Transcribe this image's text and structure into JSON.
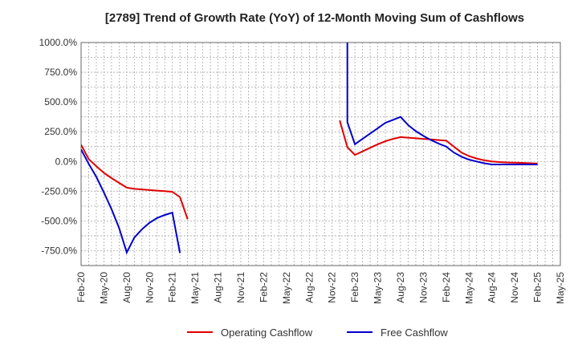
{
  "chart_data": {
    "type": "line",
    "title": "[2789]  Trend of Growth Rate (YoY) of 12-Month Moving Sum of Cashflows",
    "xlabel": "",
    "ylabel": "",
    "ylim": [
      -875,
      1000
    ],
    "y_ticks": [
      1000,
      750,
      500,
      250,
      0,
      -250,
      -500,
      -750
    ],
    "y_tick_labels": [
      "1000.0%",
      "750.0%",
      "500.0%",
      "250.0%",
      "0.0%",
      "-250.0%",
      "-500.0%",
      "-750.0%"
    ],
    "x_tick_labels": [
      "Feb-20",
      "May-20",
      "Aug-20",
      "Nov-20",
      "Feb-21",
      "May-21",
      "Aug-21",
      "Nov-21",
      "Feb-22",
      "May-22",
      "Aug-22",
      "Nov-22",
      "Feb-23",
      "May-23",
      "Aug-23",
      "Nov-23",
      "Feb-24",
      "May-24",
      "Aug-24",
      "Nov-24",
      "Feb-25",
      "May-25"
    ],
    "x_months": [
      "2020-02",
      "2020-03",
      "2020-04",
      "2020-05",
      "2020-06",
      "2020-07",
      "2020-08",
      "2020-09",
      "2020-10",
      "2020-11",
      "2020-12",
      "2021-01",
      "2021-02",
      "2021-03",
      "2021-04",
      "2021-05",
      "2021-06",
      "2021-07",
      "2021-08",
      "2021-09",
      "2021-10",
      "2021-11",
      "2021-12",
      "2022-01",
      "2022-02",
      "2022-03",
      "2022-04",
      "2022-05",
      "2022-06",
      "2022-07",
      "2022-08",
      "2022-09",
      "2022-10",
      "2022-11",
      "2022-12",
      "2023-01",
      "2023-02",
      "2023-03",
      "2023-04",
      "2023-05",
      "2023-06",
      "2023-07",
      "2023-08",
      "2023-09",
      "2023-10",
      "2023-11",
      "2023-12",
      "2024-01",
      "2024-02",
      "2024-03",
      "2024-04",
      "2024-05",
      "2024-06",
      "2024-07",
      "2024-08",
      "2024-09",
      "2024-10",
      "2024-11",
      "2024-12",
      "2025-01",
      "2025-02",
      "2025-03",
      "2025-04",
      "2025-05"
    ],
    "grid": true,
    "legend_position": "bottom-center",
    "series": [
      {
        "name": "Operating Cashflow",
        "color": "#e00000",
        "points": [
          [
            "2020-02",
            140
          ],
          [
            "2020-03",
            20
          ],
          [
            "2020-04",
            -40
          ],
          [
            "2020-05",
            -95
          ],
          [
            "2020-06",
            -140
          ],
          [
            "2020-07",
            -180
          ],
          [
            "2020-08",
            -220
          ],
          [
            "2020-09",
            -230
          ],
          [
            "2020-10",
            -235
          ],
          [
            "2020-11",
            -240
          ],
          [
            "2020-12",
            -245
          ],
          [
            "2021-01",
            -250
          ],
          [
            "2021-02",
            -255
          ],
          [
            "2021-03",
            -300
          ],
          [
            "2021-04",
            -485
          ],
          [
            "2022-12",
            345
          ],
          [
            "2023-01",
            120
          ],
          [
            "2023-02",
            55
          ],
          [
            "2023-03",
            85
          ],
          [
            "2023-04",
            115
          ],
          [
            "2023-05",
            145
          ],
          [
            "2023-06",
            170
          ],
          [
            "2023-07",
            190
          ],
          [
            "2023-08",
            205
          ],
          [
            "2023-09",
            200
          ],
          [
            "2023-10",
            195
          ],
          [
            "2023-11",
            190
          ],
          [
            "2023-12",
            185
          ],
          [
            "2024-01",
            180
          ],
          [
            "2024-02",
            175
          ],
          [
            "2024-03",
            125
          ],
          [
            "2024-04",
            75
          ],
          [
            "2024-05",
            45
          ],
          [
            "2024-06",
            25
          ],
          [
            "2024-07",
            10
          ],
          [
            "2024-08",
            0
          ],
          [
            "2024-09",
            -5
          ],
          [
            "2024-10",
            -8
          ],
          [
            "2024-11",
            -10
          ],
          [
            "2024-12",
            -12
          ],
          [
            "2025-01",
            -15
          ],
          [
            "2025-02",
            -18
          ]
        ]
      },
      {
        "name": "Free Cashflow",
        "color": "#0000cc",
        "points": [
          [
            "2020-02",
            100
          ],
          [
            "2020-03",
            -20
          ],
          [
            "2020-04",
            -130
          ],
          [
            "2020-05",
            -260
          ],
          [
            "2020-06",
            -400
          ],
          [
            "2020-07",
            -560
          ],
          [
            "2020-08",
            -765
          ],
          [
            "2020-09",
            -640
          ],
          [
            "2020-10",
            -570
          ],
          [
            "2020-11",
            -515
          ],
          [
            "2020-12",
            -475
          ],
          [
            "2021-01",
            -450
          ],
          [
            "2021-02",
            -430
          ],
          [
            "2021-03",
            -770
          ],
          [
            "2023-01",
            1000
          ],
          [
            "2023-01",
            330
          ],
          [
            "2023-02",
            145
          ],
          [
            "2023-03",
            190
          ],
          [
            "2023-04",
            235
          ],
          [
            "2023-05",
            280
          ],
          [
            "2023-06",
            325
          ],
          [
            "2023-07",
            350
          ],
          [
            "2023-08",
            375
          ],
          [
            "2023-09",
            305
          ],
          [
            "2023-10",
            255
          ],
          [
            "2023-11",
            215
          ],
          [
            "2023-12",
            180
          ],
          [
            "2024-01",
            150
          ],
          [
            "2024-02",
            125
          ],
          [
            "2024-03",
            75
          ],
          [
            "2024-04",
            40
          ],
          [
            "2024-05",
            15
          ],
          [
            "2024-06",
            0
          ],
          [
            "2024-07",
            -15
          ],
          [
            "2024-08",
            -25
          ],
          [
            "2024-09",
            -25
          ],
          [
            "2024-10",
            -25
          ],
          [
            "2024-11",
            -25
          ],
          [
            "2024-12",
            -25
          ],
          [
            "2025-01",
            -25
          ],
          [
            "2025-02",
            -25
          ]
        ]
      }
    ]
  }
}
